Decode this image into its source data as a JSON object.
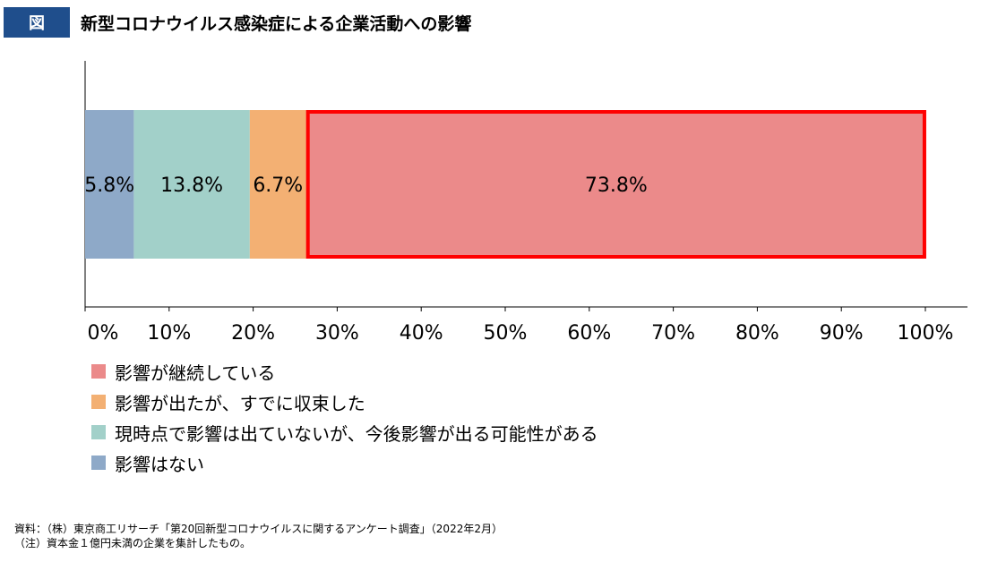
{
  "header": {
    "badge": "図",
    "title": "新型コロナウイルス感染症による企業活動への影響"
  },
  "chart_data": {
    "type": "bar",
    "orientation": "horizontal-stacked",
    "categories": [
      ""
    ],
    "series": [
      {
        "name": "影響はない",
        "values": [
          5.8
        ],
        "label": "5.8%",
        "color": "#8ea9c8"
      },
      {
        "name": "現時点で影響は出ていないが、今後影響が出る可能性がある",
        "values": [
          13.8
        ],
        "label": "13.8%",
        "color": "#a2d0c9"
      },
      {
        "name": "影響が出たが、すでに収束した",
        "values": [
          6.7
        ],
        "label": "6.7%",
        "color": "#f3b073"
      },
      {
        "name": "影響が継続している",
        "values": [
          73.8
        ],
        "label": "73.8%",
        "color": "#eb8a8a",
        "highlight": true,
        "highlight_color": "#ff0000"
      }
    ],
    "xlim": [
      0,
      100
    ],
    "xticks": [
      "0%",
      "10%",
      "20%",
      "30%",
      "40%",
      "50%",
      "60%",
      "70%",
      "80%",
      "90%",
      "100%"
    ],
    "grid": false,
    "legend_position": "bottom-left"
  },
  "legend": [
    {
      "label": "影響が継続している",
      "color": "#eb8a8a"
    },
    {
      "label": "影響が出たが、すでに収束した",
      "color": "#f3b073"
    },
    {
      "label": "現時点で影響は出ていないが、今後影響が出る可能性がある",
      "color": "#a2d0c9"
    },
    {
      "label": "影響はない",
      "color": "#8ea9c8"
    }
  ],
  "footnotes": {
    "source": "資料：（株）東京商工リサーチ「第20回新型コロナウイルスに関するアンケート調査」（2022年2月）",
    "note": "（注）資本金１億円未満の企業を集計したもの。"
  }
}
